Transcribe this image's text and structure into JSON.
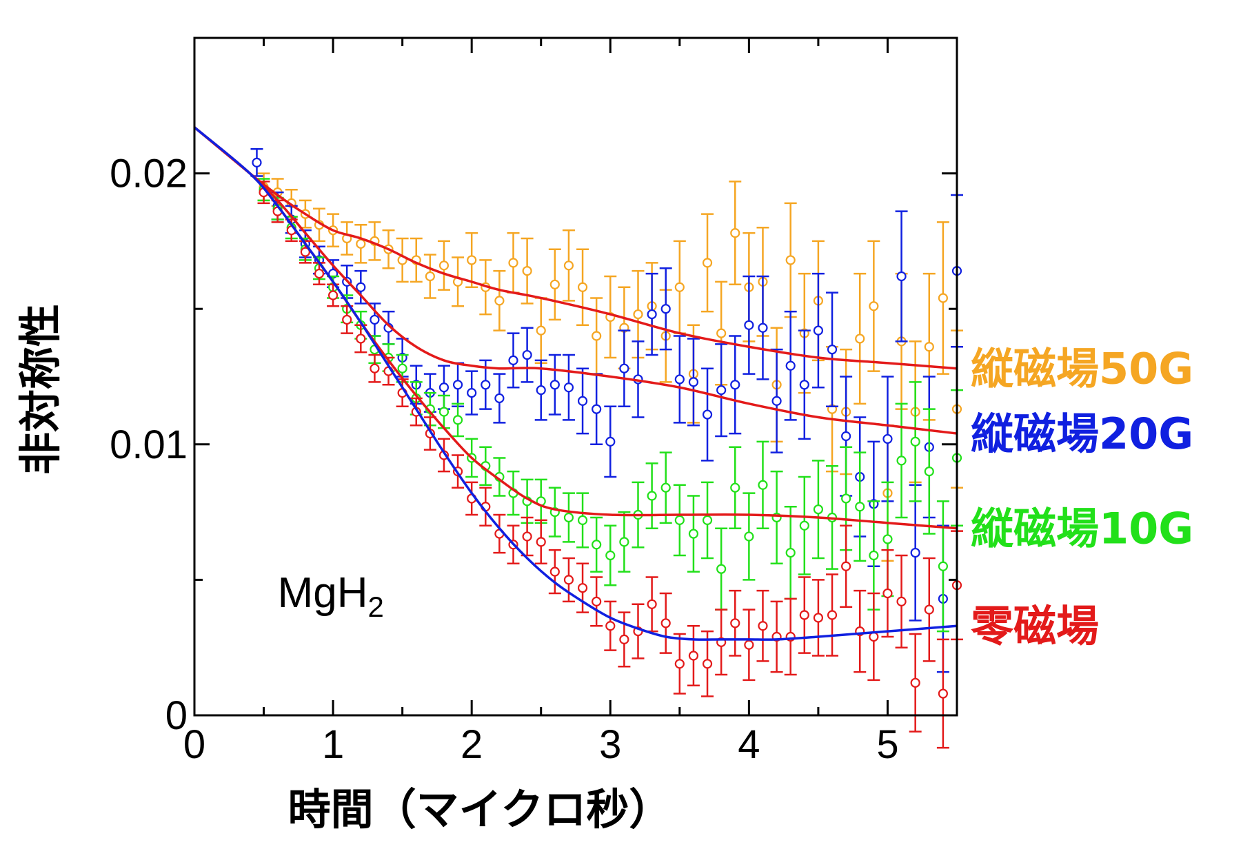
{
  "chart_data": {
    "type": "scatter",
    "title": "",
    "xlabel": "時間（マイクロ秒）",
    "ylabel": "非対称性",
    "xlim": [
      0,
      5.5
    ],
    "ylim": [
      0,
      0.025
    ],
    "x_ticks": [
      {
        "value": 0,
        "label": "0"
      },
      {
        "value": 1,
        "label": "1"
      },
      {
        "value": 2,
        "label": "2"
      },
      {
        "value": 3,
        "label": "3"
      },
      {
        "value": 4,
        "label": "4"
      },
      {
        "value": 5,
        "label": "5"
      }
    ],
    "y_ticks": [
      {
        "value": 0,
        "label": "0"
      },
      {
        "value": 0.01,
        "label": "0.01"
      },
      {
        "value": 0.02,
        "label": "0.02"
      }
    ],
    "grid": false,
    "legend_placement": "right",
    "annotation": {
      "text": "MgH",
      "sub": "2",
      "x": 0.6,
      "y": 0.0045
    },
    "series": [
      {
        "name": "縦磁場50G",
        "color": "#f5a623",
        "x": [
          0.5,
          0.6,
          0.7,
          0.8,
          0.9,
          1.0,
          1.1,
          1.2,
          1.3,
          1.4,
          1.5,
          1.6,
          1.7,
          1.8,
          1.9,
          2.0,
          2.1,
          2.2,
          2.3,
          2.4,
          2.5,
          2.6,
          2.7,
          2.8,
          2.9,
          3.0,
          3.1,
          3.2,
          3.3,
          3.4,
          3.5,
          3.6,
          3.7,
          3.8,
          3.9,
          4.0,
          4.1,
          4.2,
          4.3,
          4.4,
          4.5,
          4.6,
          4.7,
          4.8,
          4.9,
          5.0,
          5.1,
          5.2,
          5.3,
          5.4,
          5.5
        ],
        "y": [
          0.0195,
          0.0193,
          0.0189,
          0.0185,
          0.0181,
          0.0179,
          0.0176,
          0.0174,
          0.0175,
          0.0172,
          0.0168,
          0.0168,
          0.0162,
          0.0166,
          0.016,
          0.0168,
          0.0158,
          0.0153,
          0.0167,
          0.0164,
          0.0142,
          0.0159,
          0.0166,
          0.0158,
          0.014,
          0.0147,
          0.0143,
          0.0148,
          0.0151,
          0.014,
          0.0158,
          0.0126,
          0.0167,
          0.0141,
          0.0178,
          0.0158,
          0.016,
          0.0122,
          0.0168,
          0.0141,
          0.0153,
          0.0113,
          0.0112,
          0.0139,
          0.0151,
          0.0082,
          0.0138,
          0.0112,
          0.0136,
          0.0154,
          0.0113
        ],
        "err": [
          0.0005,
          0.0005,
          0.0005,
          0.0005,
          0.0006,
          0.0006,
          0.0006,
          0.0007,
          0.0007,
          0.0007,
          0.0008,
          0.0008,
          0.0008,
          0.0009,
          0.0009,
          0.001,
          0.001,
          0.0011,
          0.0011,
          0.0012,
          0.0012,
          0.0013,
          0.0013,
          0.0014,
          0.0014,
          0.0015,
          0.0015,
          0.0016,
          0.0016,
          0.0017,
          0.0017,
          0.0018,
          0.0018,
          0.0019,
          0.0019,
          0.002,
          0.002,
          0.0021,
          0.0021,
          0.0022,
          0.0022,
          0.0023,
          0.0023,
          0.0024,
          0.0024,
          0.0025,
          0.0025,
          0.0026,
          0.0027,
          0.0028,
          0.0029
        ],
        "fit": {
          "color": "#e31a1a",
          "x": [
            0,
            0.4,
            0.6,
            0.8,
            1.0,
            1.2,
            1.4,
            1.6,
            1.8,
            2.0,
            2.2,
            2.5,
            3.0,
            3.5,
            4.0,
            4.5,
            5.0,
            5.5
          ],
          "y": [
            0.0217,
            0.02,
            0.0192,
            0.0185,
            0.0179,
            0.0176,
            0.0172,
            0.0167,
            0.0163,
            0.016,
            0.0157,
            0.0154,
            0.0148,
            0.0141,
            0.0136,
            0.0132,
            0.013,
            0.0128
          ]
        }
      },
      {
        "name": "縦磁場20G",
        "color": "#1020e0",
        "x": [
          0.45,
          0.6,
          0.7,
          0.8,
          0.9,
          1.0,
          1.1,
          1.2,
          1.3,
          1.4,
          1.5,
          1.6,
          1.7,
          1.8,
          1.9,
          2.0,
          2.1,
          2.2,
          2.3,
          2.4,
          2.5,
          2.6,
          2.7,
          2.8,
          2.9,
          3.0,
          3.1,
          3.2,
          3.3,
          3.4,
          3.5,
          3.6,
          3.7,
          3.8,
          3.9,
          4.0,
          4.1,
          4.2,
          4.3,
          4.4,
          4.5,
          4.6,
          4.7,
          4.8,
          4.9,
          5.0,
          5.1,
          5.2,
          5.3,
          5.4,
          5.5
        ],
        "y": [
          0.0204,
          0.0188,
          0.0183,
          0.0174,
          0.0168,
          0.0163,
          0.016,
          0.0158,
          0.0146,
          0.0143,
          0.0132,
          0.0122,
          0.0119,
          0.0121,
          0.0122,
          0.0119,
          0.0122,
          0.0117,
          0.0131,
          0.0133,
          0.012,
          0.0122,
          0.0121,
          0.0116,
          0.0113,
          0.0101,
          0.0128,
          0.0124,
          0.0148,
          0.015,
          0.0124,
          0.0123,
          0.0111,
          0.012,
          0.0122,
          0.0144,
          0.0143,
          0.0116,
          0.0129,
          0.0122,
          0.0142,
          0.0135,
          0.0103,
          0.0088,
          0.0078,
          0.0102,
          0.0162,
          0.006,
          0.0099,
          0.0043,
          0.0164
        ],
        "err": [
          0.0005,
          0.0005,
          0.0005,
          0.0005,
          0.0005,
          0.0005,
          0.0006,
          0.0006,
          0.0006,
          0.0006,
          0.0007,
          0.0007,
          0.0007,
          0.0008,
          0.0008,
          0.0008,
          0.0009,
          0.0009,
          0.001,
          0.001,
          0.0011,
          0.0011,
          0.0012,
          0.0012,
          0.0013,
          0.0013,
          0.0014,
          0.0014,
          0.0015,
          0.0015,
          0.0016,
          0.0016,
          0.0017,
          0.0017,
          0.0018,
          0.0018,
          0.0019,
          0.0019,
          0.002,
          0.002,
          0.0021,
          0.0021,
          0.0022,
          0.0022,
          0.0023,
          0.0023,
          0.0024,
          0.0025,
          0.0026,
          0.0027,
          0.0028
        ],
        "fit": {
          "color": "#e31a1a",
          "x": [
            0,
            0.4,
            0.6,
            0.8,
            1.0,
            1.2,
            1.4,
            1.6,
            1.8,
            2.0,
            2.2,
            2.5,
            3.0,
            3.5,
            4.0,
            4.5,
            5.0,
            5.5
          ],
          "y": [
            0.0217,
            0.02,
            0.019,
            0.0178,
            0.0166,
            0.0155,
            0.0144,
            0.0136,
            0.0131,
            0.0129,
            0.0128,
            0.0128,
            0.0125,
            0.0121,
            0.0115,
            0.011,
            0.0107,
            0.0104
          ]
        }
      },
      {
        "name": "縦磁場10G",
        "color": "#22e01a",
        "x": [
          0.5,
          0.6,
          0.7,
          0.8,
          0.9,
          1.0,
          1.1,
          1.2,
          1.3,
          1.4,
          1.5,
          1.6,
          1.7,
          1.8,
          1.9,
          2.0,
          2.1,
          2.2,
          2.3,
          2.4,
          2.5,
          2.6,
          2.7,
          2.8,
          2.9,
          3.0,
          3.1,
          3.2,
          3.3,
          3.4,
          3.5,
          3.6,
          3.7,
          3.8,
          3.9,
          4.0,
          4.1,
          4.2,
          4.3,
          4.4,
          4.5,
          4.6,
          4.7,
          4.8,
          4.9,
          5.0,
          5.1,
          5.2,
          5.3,
          5.4,
          5.5
        ],
        "y": [
          0.0194,
          0.0187,
          0.018,
          0.0172,
          0.0165,
          0.0158,
          0.015,
          0.0144,
          0.0135,
          0.0132,
          0.0128,
          0.0117,
          0.0113,
          0.0112,
          0.0109,
          0.0095,
          0.0092,
          0.0088,
          0.0082,
          0.0079,
          0.0079,
          0.0075,
          0.0073,
          0.0072,
          0.0063,
          0.0059,
          0.0064,
          0.0074,
          0.0081,
          0.0084,
          0.0072,
          0.0067,
          0.0072,
          0.0054,
          0.0084,
          0.0066,
          0.0085,
          0.0073,
          0.006,
          0.007,
          0.0076,
          0.0073,
          0.008,
          0.0077,
          0.0059,
          0.0065,
          0.0094,
          0.0101,
          0.009,
          0.0055,
          0.0095
        ],
        "err": [
          0.0004,
          0.0004,
          0.0004,
          0.0004,
          0.0004,
          0.0004,
          0.0005,
          0.0005,
          0.0005,
          0.0005,
          0.0005,
          0.0006,
          0.0006,
          0.0006,
          0.0006,
          0.0007,
          0.0007,
          0.0007,
          0.0008,
          0.0008,
          0.0008,
          0.0009,
          0.0009,
          0.001,
          0.001,
          0.0011,
          0.0011,
          0.0012,
          0.0012,
          0.0013,
          0.0013,
          0.0014,
          0.0014,
          0.0015,
          0.0015,
          0.0016,
          0.0016,
          0.0017,
          0.0017,
          0.0018,
          0.0018,
          0.0019,
          0.0019,
          0.002,
          0.002,
          0.0021,
          0.0021,
          0.0022,
          0.0023,
          0.0024,
          0.0025
        ],
        "fit": {
          "color": "#e31a1a",
          "x": [
            0,
            0.4,
            0.6,
            0.8,
            1.0,
            1.2,
            1.4,
            1.6,
            1.8,
            2.0,
            2.2,
            2.4,
            2.6,
            3.0,
            3.5,
            4.0,
            4.5,
            5.0,
            5.5
          ],
          "y": [
            0.0217,
            0.02,
            0.0188,
            0.0174,
            0.016,
            0.0145,
            0.0131,
            0.0118,
            0.0106,
            0.0095,
            0.0087,
            0.008,
            0.0076,
            0.0074,
            0.0074,
            0.0074,
            0.0073,
            0.0071,
            0.0069
          ]
        }
      },
      {
        "name": "零磁場",
        "color": "#e31a1a",
        "x": [
          0.5,
          0.6,
          0.7,
          0.8,
          0.9,
          1.0,
          1.1,
          1.2,
          1.3,
          1.4,
          1.5,
          1.6,
          1.7,
          1.8,
          1.9,
          2.0,
          2.1,
          2.2,
          2.3,
          2.4,
          2.5,
          2.6,
          2.7,
          2.8,
          2.9,
          3.0,
          3.1,
          3.2,
          3.3,
          3.4,
          3.5,
          3.6,
          3.7,
          3.8,
          3.9,
          4.0,
          4.1,
          4.2,
          4.3,
          4.4,
          4.5,
          4.6,
          4.7,
          4.8,
          4.9,
          5.0,
          5.1,
          5.2,
          5.3,
          5.4,
          5.5
        ],
        "y": [
          0.0193,
          0.0186,
          0.0179,
          0.0171,
          0.0163,
          0.0155,
          0.0146,
          0.0139,
          0.0128,
          0.0127,
          0.0119,
          0.0112,
          0.0104,
          0.0096,
          0.009,
          0.008,
          0.0077,
          0.0067,
          0.0063,
          0.0066,
          0.0064,
          0.0053,
          0.005,
          0.0047,
          0.0042,
          0.0033,
          0.0028,
          0.0031,
          0.0041,
          0.0034,
          0.0019,
          0.0022,
          0.0019,
          0.0027,
          0.0034,
          0.0026,
          0.0033,
          0.0029,
          0.0029,
          0.0037,
          0.0036,
          0.0037,
          0.0055,
          0.0031,
          0.0029,
          0.0045,
          0.0042,
          0.0012,
          0.0039,
          0.0008,
          0.0048
        ],
        "err": [
          0.0004,
          0.0004,
          0.0004,
          0.0004,
          0.0004,
          0.0004,
          0.0005,
          0.0005,
          0.0005,
          0.0005,
          0.0005,
          0.0005,
          0.0006,
          0.0006,
          0.0006,
          0.0006,
          0.0007,
          0.0007,
          0.0007,
          0.0007,
          0.0008,
          0.0008,
          0.0008,
          0.0009,
          0.0009,
          0.0009,
          0.001,
          0.001,
          0.001,
          0.0011,
          0.0011,
          0.0011,
          0.0012,
          0.0012,
          0.0012,
          0.0013,
          0.0013,
          0.0013,
          0.0014,
          0.0014,
          0.0014,
          0.0015,
          0.0015,
          0.0015,
          0.0016,
          0.0016,
          0.0017,
          0.0018,
          0.0019,
          0.002,
          0.002
        ],
        "fit": {
          "color": "#1020e0",
          "x": [
            0,
            0.4,
            0.6,
            0.8,
            1.0,
            1.2,
            1.4,
            1.6,
            1.8,
            2.0,
            2.2,
            2.4,
            2.6,
            2.8,
            3.0,
            3.2,
            3.4,
            3.6,
            3.8,
            4.0,
            4.2,
            4.5,
            5.0,
            5.5
          ],
          "y": [
            0.0217,
            0.02,
            0.0188,
            0.0174,
            0.016,
            0.0145,
            0.0129,
            0.0113,
            0.0097,
            0.0082,
            0.0069,
            0.0058,
            0.0049,
            0.0042,
            0.0036,
            0.0032,
            0.0029,
            0.0028,
            0.0028,
            0.0028,
            0.0028,
            0.0029,
            0.0031,
            0.0033
          ]
        }
      }
    ]
  }
}
